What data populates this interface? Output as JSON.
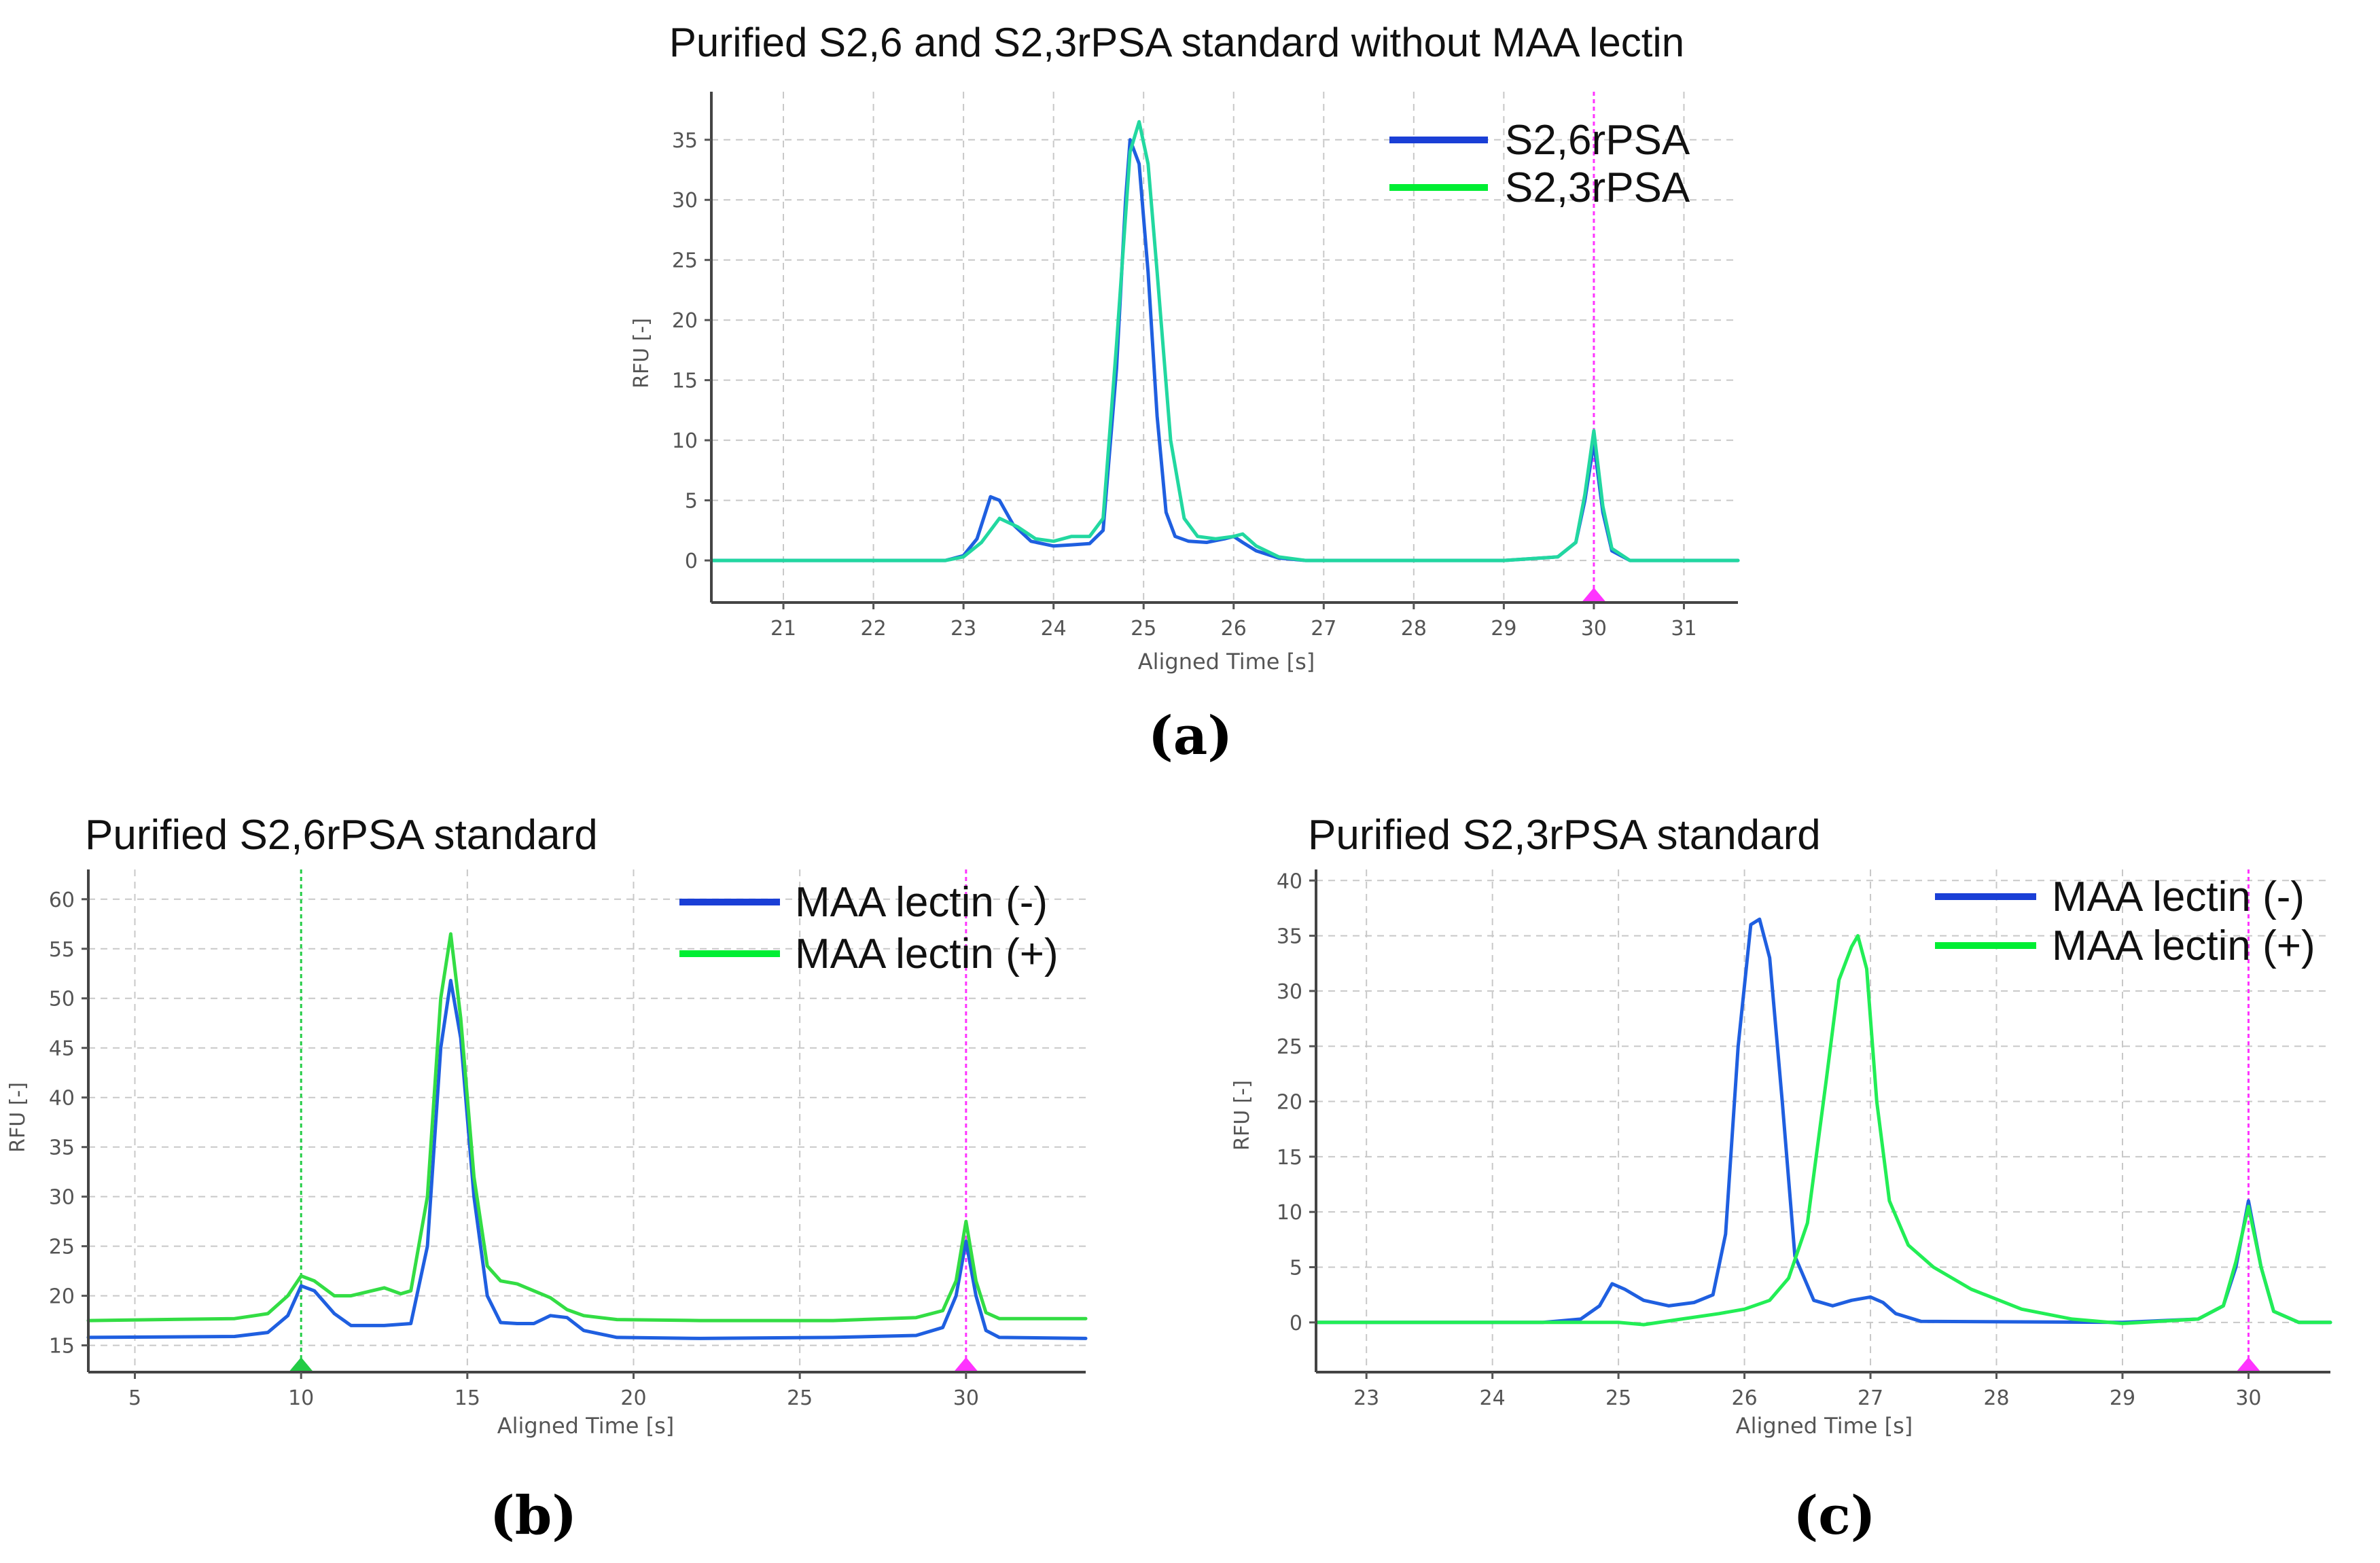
{
  "figure": {
    "captions": [
      "(a)",
      "(b)",
      "(c)"
    ]
  },
  "chart_data": [
    {
      "type": "line",
      "title": "Purified S2,6 and S2,3rPSA standard without MAA lectin",
      "xlabel": "Aligned Time [s]",
      "ylabel": "RFU [-]",
      "xlim": [
        20.2,
        31.6
      ],
      "ylim": [
        -3.5,
        39
      ],
      "xticks": [
        21,
        22,
        23,
        24,
        25,
        26,
        27,
        28,
        29,
        30,
        31
      ],
      "yticks": [
        0,
        5,
        10,
        15,
        20,
        25,
        30,
        35
      ],
      "legend_position": "top-right",
      "marker_lines": [
        {
          "x": 30,
          "color": "#ff33ff"
        }
      ],
      "series": [
        {
          "name": "S2,6rPSA",
          "color": "#1a3fd6",
          "line_color": "#1f5fe0",
          "x": [
            20.2,
            22.8,
            23.0,
            23.15,
            23.3,
            23.4,
            23.55,
            23.75,
            24.0,
            24.2,
            24.4,
            24.55,
            24.7,
            24.8,
            24.85,
            24.95,
            25.05,
            25.15,
            25.25,
            25.35,
            25.5,
            25.7,
            25.9,
            26.0,
            26.1,
            26.25,
            26.5,
            26.8,
            29.0,
            29.6,
            29.8,
            29.9,
            30.0,
            30.1,
            30.2,
            30.4,
            31.6
          ],
          "y": [
            0,
            0,
            0.4,
            1.8,
            5.3,
            5.0,
            3.0,
            1.6,
            1.2,
            1.3,
            1.4,
            2.5,
            16.0,
            30.0,
            35.0,
            33.0,
            24.0,
            12.0,
            4.0,
            2.0,
            1.6,
            1.5,
            1.8,
            2.0,
            1.5,
            0.8,
            0.2,
            0,
            0,
            0.3,
            1.5,
            5.0,
            9.8,
            4.0,
            0.8,
            0,
            0
          ]
        },
        {
          "name": "S2,3rPSA",
          "color": "#00ee33",
          "line_color": "#22d8a0",
          "x": [
            20.2,
            22.8,
            23.0,
            23.2,
            23.4,
            23.6,
            23.8,
            24.0,
            24.2,
            24.4,
            24.55,
            24.7,
            24.85,
            24.95,
            25.05,
            25.15,
            25.3,
            25.45,
            25.6,
            25.8,
            26.0,
            26.1,
            26.25,
            26.5,
            26.8,
            29.0,
            29.6,
            29.8,
            29.9,
            30.0,
            30.1,
            30.2,
            30.4,
            31.6
          ],
          "y": [
            0,
            0,
            0.3,
            1.5,
            3.5,
            2.8,
            1.8,
            1.6,
            2.0,
            2.0,
            3.5,
            18.0,
            34.0,
            36.5,
            33.0,
            24.0,
            10.0,
            3.5,
            2.0,
            1.8,
            2.0,
            2.2,
            1.2,
            0.3,
            0,
            0,
            0.3,
            1.5,
            5.5,
            10.8,
            4.5,
            1.0,
            0,
            0
          ]
        }
      ]
    },
    {
      "type": "line",
      "title": "Purified S2,6rPSA standard",
      "xlabel": "Aligned Time [s]",
      "ylabel": "RFU [-]",
      "xlim": [
        3.6,
        33.6
      ],
      "ylim": [
        12.3,
        63
      ],
      "xticks": [
        5,
        10,
        15,
        20,
        25,
        30
      ],
      "yticks": [
        15,
        20,
        25,
        30,
        35,
        40,
        45,
        50,
        55,
        60
      ],
      "legend_position": "top-right",
      "marker_lines": [
        {
          "x": 10,
          "color": "#22cc44"
        },
        {
          "x": 30,
          "color": "#ff33ff"
        }
      ],
      "series": [
        {
          "name": "MAA lectin (-)",
          "color": "#1a3fd6",
          "line_color": "#1f5fe0",
          "x": [
            3.6,
            8.0,
            9.0,
            9.6,
            10.0,
            10.4,
            11.0,
            11.5,
            12.5,
            13.3,
            13.8,
            14.2,
            14.5,
            14.8,
            15.2,
            15.6,
            16.0,
            16.5,
            17.0,
            17.5,
            18.0,
            18.5,
            19.5,
            22,
            26,
            28.5,
            29.3,
            29.7,
            30.0,
            30.3,
            30.6,
            31.0,
            33.6
          ],
          "y": [
            15.8,
            15.9,
            16.3,
            18.0,
            21.0,
            20.5,
            18.2,
            17.0,
            17.0,
            17.2,
            25.0,
            45.0,
            51.8,
            46.0,
            30.0,
            20.0,
            17.3,
            17.2,
            17.2,
            18.0,
            17.8,
            16.5,
            15.8,
            15.7,
            15.8,
            16.0,
            16.8,
            20.0,
            25.5,
            20.0,
            16.5,
            15.8,
            15.7
          ]
        },
        {
          "name": "MAA lectin (+)",
          "color": "#00ee33",
          "line_color": "#33dd44",
          "x": [
            3.6,
            8.0,
            9.0,
            9.6,
            10.0,
            10.4,
            11.0,
            11.5,
            12.5,
            13.0,
            13.3,
            13.8,
            14.2,
            14.5,
            14.8,
            15.2,
            15.6,
            16.0,
            16.5,
            17.0,
            17.5,
            18.0,
            18.5,
            19.5,
            22,
            26,
            28.5,
            29.3,
            29.7,
            30.0,
            30.3,
            30.6,
            31.0,
            33.6
          ],
          "y": [
            17.5,
            17.7,
            18.2,
            20.0,
            22.0,
            21.5,
            20.0,
            20.0,
            20.8,
            20.2,
            20.5,
            30.0,
            50.0,
            56.5,
            48.0,
            32.0,
            23.0,
            21.5,
            21.2,
            20.5,
            19.8,
            18.6,
            18.0,
            17.6,
            17.5,
            17.5,
            17.8,
            18.5,
            21.5,
            27.5,
            21.5,
            18.3,
            17.7,
            17.7
          ]
        }
      ]
    },
    {
      "type": "line",
      "title": "Purified S2,3rPSA standard",
      "xlabel": "Aligned Time [s]",
      "ylabel": "RFU [-]",
      "xlim": [
        22.6,
        30.65
      ],
      "ylim": [
        -4.5,
        41
      ],
      "xticks": [
        23,
        24,
        25,
        26,
        27,
        28,
        29,
        30
      ],
      "yticks": [
        0,
        5,
        10,
        15,
        20,
        25,
        30,
        35,
        40
      ],
      "legend_position": "top-right",
      "marker_lines": [
        {
          "x": 30,
          "color": "#ff33ff"
        }
      ],
      "series": [
        {
          "name": "MAA lectin (-)",
          "color": "#1a3fd6",
          "line_color": "#1f5fe0",
          "x": [
            22.6,
            24.4,
            24.7,
            24.85,
            24.95,
            25.05,
            25.2,
            25.4,
            25.6,
            25.75,
            25.85,
            25.95,
            26.05,
            26.12,
            26.2,
            26.3,
            26.4,
            26.55,
            26.7,
            26.85,
            27.0,
            27.1,
            27.2,
            27.4,
            29.0,
            29.6,
            29.8,
            29.9,
            30.0,
            30.1,
            30.2,
            30.4,
            30.65
          ],
          "y": [
            0,
            0,
            0.3,
            1.5,
            3.5,
            3.0,
            2.0,
            1.5,
            1.8,
            2.5,
            8.0,
            25.0,
            36.0,
            36.5,
            33.0,
            20.0,
            6.0,
            2.0,
            1.5,
            2.0,
            2.3,
            1.8,
            0.8,
            0.1,
            0,
            0.3,
            1.5,
            5.0,
            11.0,
            5.0,
            1.0,
            0,
            0
          ]
        },
        {
          "name": "MAA lectin (+)",
          "color": "#00ee33",
          "line_color": "#22ee55",
          "x": [
            22.6,
            24.4,
            24.8,
            25.0,
            25.2,
            25.5,
            25.8,
            26.0,
            26.2,
            26.35,
            26.5,
            26.65,
            26.75,
            26.85,
            26.9,
            26.97,
            27.05,
            27.15,
            27.3,
            27.5,
            27.8,
            28.2,
            28.6,
            29.0,
            29.6,
            29.8,
            29.9,
            30.0,
            30.1,
            30.2,
            30.4,
            30.65
          ],
          "y": [
            0,
            0,
            0,
            0,
            -0.2,
            0.3,
            0.8,
            1.2,
            2.0,
            4.0,
            9.0,
            22.0,
            31.0,
            34.0,
            35.0,
            32.0,
            20.0,
            11.0,
            7.0,
            5.0,
            3.0,
            1.2,
            0.3,
            -0.1,
            0.3,
            1.5,
            5.5,
            10.5,
            5.0,
            1.0,
            0,
            0
          ]
        }
      ]
    }
  ]
}
